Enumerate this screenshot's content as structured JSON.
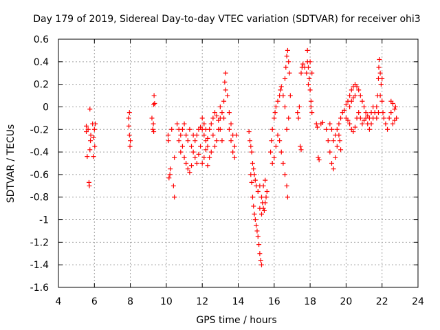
{
  "chart_data": {
    "type": "scatter",
    "title": "Day 179 of 2019, Sidereal Day-to-day VTEC variation (SDTVAR) for receiver ohi3",
    "xlabel": "GPS time / hours",
    "ylabel": "SDTVAR / TECUs",
    "xlim": [
      4,
      24
    ],
    "ylim": [
      -1.6,
      0.6
    ],
    "xticks": [
      4,
      6,
      8,
      10,
      12,
      14,
      16,
      18,
      20,
      22,
      24
    ],
    "xtick_labels": [
      "4",
      "6",
      "8",
      "10",
      "12",
      "14",
      "16",
      "18",
      "20",
      "22",
      "24"
    ],
    "yticks": [
      -1.6,
      -1.4,
      -1.2,
      -1,
      -0.8,
      -0.6,
      -0.4,
      -0.2,
      0,
      0.2,
      0.4,
      0.6
    ],
    "ytick_labels": [
      "-1.6",
      "-1.4",
      "-1.2",
      "-1",
      "-0.8",
      "-0.6",
      "-0.4",
      "-0.2",
      "0",
      "0.2",
      "0.4",
      "0.6"
    ],
    "grid": true,
    "marker": "+",
    "color": "#ff0000",
    "series": [
      {
        "name": "SDTVAR",
        "points": [
          [
            5.55,
            -0.17
          ],
          [
            5.55,
            -0.22
          ],
          [
            5.6,
            -0.44
          ],
          [
            5.65,
            -0.2
          ],
          [
            5.75,
            -0.02
          ],
          [
            5.8,
            -0.25
          ],
          [
            5.75,
            -0.38
          ],
          [
            5.7,
            -0.67
          ],
          [
            5.72,
            -0.7
          ],
          [
            5.78,
            -0.3
          ],
          [
            5.9,
            -0.15
          ],
          [
            5.95,
            -0.27
          ],
          [
            5.95,
            -0.44
          ],
          [
            6.0,
            -0.2
          ],
          [
            6.02,
            -0.35
          ],
          [
            6.05,
            -0.15
          ],
          [
            7.9,
            -0.1
          ],
          [
            7.92,
            -0.17
          ],
          [
            7.95,
            -0.25
          ],
          [
            7.98,
            -0.35
          ],
          [
            8.0,
            -0.3
          ],
          [
            7.95,
            -0.05
          ],
          [
            9.2,
            -0.1
          ],
          [
            9.25,
            -0.2
          ],
          [
            9.3,
            0.02
          ],
          [
            9.32,
            0.1
          ],
          [
            9.35,
            0.03
          ],
          [
            9.3,
            -0.22
          ],
          [
            9.28,
            -0.15
          ],
          [
            10.1,
            -0.25
          ],
          [
            10.12,
            -0.3
          ],
          [
            10.15,
            -0.63
          ],
          [
            10.2,
            -0.6
          ],
          [
            10.22,
            -0.55
          ],
          [
            10.3,
            -0.2
          ],
          [
            10.4,
            -0.7
          ],
          [
            10.45,
            -0.8
          ],
          [
            10.45,
            -0.45
          ],
          [
            10.6,
            -0.15
          ],
          [
            10.7,
            -0.2
          ],
          [
            10.8,
            -0.25
          ],
          [
            10.9,
            -0.35
          ],
          [
            11.0,
            -0.45
          ],
          [
            11.1,
            -0.5
          ],
          [
            11.2,
            -0.55
          ],
          [
            11.3,
            -0.58
          ],
          [
            11.4,
            -0.52
          ],
          [
            11.5,
            -0.4
          ],
          [
            11.6,
            -0.3
          ],
          [
            11.7,
            -0.25
          ],
          [
            11.8,
            -0.2
          ],
          [
            11.9,
            -0.18
          ],
          [
            12.0,
            -0.2
          ],
          [
            12.1,
            -0.25
          ],
          [
            12.2,
            -0.3
          ],
          [
            12.3,
            -0.35
          ],
          [
            10.7,
            -0.3
          ],
          [
            10.8,
            -0.4
          ],
          [
            10.9,
            -0.2
          ],
          [
            11.0,
            -0.15
          ],
          [
            11.1,
            -0.25
          ],
          [
            11.2,
            -0.3
          ],
          [
            11.3,
            -0.2
          ],
          [
            11.4,
            -0.35
          ],
          [
            11.5,
            -0.25
          ],
          [
            11.6,
            -0.45
          ],
          [
            11.7,
            -0.5
          ],
          [
            11.8,
            -0.42
          ],
          [
            11.9,
            -0.35
          ],
          [
            12.0,
            -0.5
          ],
          [
            12.1,
            -0.45
          ],
          [
            12.2,
            -0.38
          ],
          [
            12.3,
            -0.28
          ],
          [
            12.4,
            -0.2
          ],
          [
            12.5,
            -0.15
          ],
          [
            12.6,
            -0.25
          ],
          [
            12.7,
            -0.35
          ],
          [
            12.8,
            -0.3
          ],
          [
            12.9,
            -0.2
          ],
          [
            12.0,
            -0.1
          ],
          [
            12.1,
            -0.15
          ],
          [
            12.2,
            -0.2
          ],
          [
            12.3,
            -0.52
          ],
          [
            12.4,
            -0.45
          ],
          [
            12.5,
            -0.4
          ],
          [
            12.6,
            -0.1
          ],
          [
            12.7,
            -0.05
          ],
          [
            12.8,
            -0.08
          ],
          [
            12.9,
            -0.12
          ],
          [
            13.0,
            -0.1
          ],
          [
            13.1,
            -0.05
          ],
          [
            13.2,
            0.05
          ],
          [
            13.3,
            0.15
          ],
          [
            13.25,
            0.22
          ],
          [
            13.3,
            0.3
          ],
          [
            13.4,
            0.1
          ],
          [
            13.5,
            -0.05
          ],
          [
            13.6,
            -0.15
          ],
          [
            13.7,
            -0.25
          ],
          [
            13.8,
            -0.35
          ],
          [
            13.7,
            -0.4
          ],
          [
            13.6,
            -0.3
          ],
          [
            13.5,
            -0.2
          ],
          [
            13.8,
            -0.45
          ],
          [
            13.9,
            -0.25
          ],
          [
            13.0,
            -0.2
          ],
          [
            13.1,
            -0.3
          ],
          [
            13.0,
            0.0
          ],
          [
            13.2,
            -0.1
          ],
          [
            14.6,
            -0.22
          ],
          [
            14.65,
            -0.3
          ],
          [
            14.7,
            -0.35
          ],
          [
            14.75,
            -0.4
          ],
          [
            14.8,
            -0.5
          ],
          [
            14.85,
            -0.55
          ],
          [
            14.9,
            -0.6
          ],
          [
            14.95,
            -0.65
          ],
          [
            15.0,
            -0.7
          ],
          [
            14.7,
            -0.6
          ],
          [
            14.75,
            -0.67
          ],
          [
            14.8,
            -0.8
          ],
          [
            14.85,
            -0.88
          ],
          [
            14.9,
            -0.95
          ],
          [
            14.95,
            -1.0
          ],
          [
            15.0,
            -1.05
          ],
          [
            15.05,
            -1.1
          ],
          [
            15.1,
            -1.15
          ],
          [
            15.15,
            -1.22
          ],
          [
            15.2,
            -1.3
          ],
          [
            15.25,
            -1.36
          ],
          [
            15.3,
            -1.4
          ],
          [
            15.2,
            -0.7
          ],
          [
            15.3,
            -0.8
          ],
          [
            15.35,
            -0.85
          ],
          [
            15.4,
            -0.9
          ],
          [
            15.45,
            -0.92
          ],
          [
            15.5,
            -0.85
          ],
          [
            15.55,
            -0.8
          ],
          [
            15.6,
            -0.75
          ],
          [
            15.4,
            -0.7
          ],
          [
            15.5,
            -0.65
          ],
          [
            15.1,
            -0.75
          ],
          [
            15.2,
            -0.9
          ],
          [
            15.3,
            -0.95
          ],
          [
            15.8,
            -0.4
          ],
          [
            15.85,
            -0.3
          ],
          [
            15.9,
            -0.2
          ],
          [
            16.0,
            -0.1
          ],
          [
            16.05,
            -0.05
          ],
          [
            16.1,
            0.0
          ],
          [
            16.2,
            0.05
          ],
          [
            16.3,
            0.1
          ],
          [
            16.35,
            0.15
          ],
          [
            16.4,
            0.18
          ],
          [
            15.9,
            -0.5
          ],
          [
            16.0,
            -0.45
          ],
          [
            16.1,
            -0.35
          ],
          [
            16.2,
            -0.25
          ],
          [
            16.3,
            -0.3
          ],
          [
            16.4,
            -0.4
          ],
          [
            16.5,
            -0.5
          ],
          [
            16.6,
            -0.6
          ],
          [
            16.7,
            -0.7
          ],
          [
            16.75,
            -0.8
          ],
          [
            16.5,
            0.1
          ],
          [
            16.6,
            0.25
          ],
          [
            16.65,
            0.35
          ],
          [
            16.7,
            0.45
          ],
          [
            16.75,
            0.5
          ],
          [
            16.8,
            0.4
          ],
          [
            16.85,
            0.3
          ],
          [
            16.9,
            0.1
          ],
          [
            16.6,
            0.0
          ],
          [
            16.7,
            -0.2
          ],
          [
            16.8,
            -0.1
          ],
          [
            17.3,
            -0.05
          ],
          [
            17.35,
            -0.1
          ],
          [
            17.4,
            0.0
          ],
          [
            17.45,
            -0.35
          ],
          [
            17.5,
            -0.38
          ],
          [
            17.5,
            0.3
          ],
          [
            17.55,
            0.35
          ],
          [
            17.6,
            0.38
          ],
          [
            17.7,
            0.35
          ],
          [
            17.8,
            0.3
          ],
          [
            17.85,
            0.4
          ],
          [
            17.9,
            0.35
          ],
          [
            17.95,
            0.25
          ],
          [
            18.0,
            0.15
          ],
          [
            18.05,
            0.05
          ],
          [
            18.1,
            -0.05
          ],
          [
            17.85,
            0.5
          ],
          [
            17.9,
            0.2
          ],
          [
            18.0,
            0.4
          ],
          [
            18.1,
            0.3
          ],
          [
            18.05,
            0.0
          ],
          [
            18.35,
            -0.15
          ],
          [
            18.4,
            -0.18
          ],
          [
            18.45,
            -0.45
          ],
          [
            18.5,
            -0.47
          ],
          [
            18.6,
            -0.15
          ],
          [
            18.7,
            -0.14
          ],
          [
            18.9,
            -0.2
          ],
          [
            19.0,
            -0.3
          ],
          [
            19.1,
            -0.4
          ],
          [
            19.2,
            -0.5
          ],
          [
            19.3,
            -0.55
          ],
          [
            19.4,
            -0.45
          ],
          [
            19.5,
            -0.35
          ],
          [
            19.6,
            -0.25
          ],
          [
            19.1,
            -0.15
          ],
          [
            19.2,
            -0.2
          ],
          [
            19.3,
            -0.3
          ],
          [
            19.4,
            -0.25
          ],
          [
            19.5,
            -0.2
          ],
          [
            19.6,
            -0.15
          ],
          [
            19.7,
            -0.1
          ],
          [
            19.65,
            -0.3
          ],
          [
            19.7,
            -0.38
          ],
          [
            19.8,
            -0.05
          ],
          [
            19.9,
            -0.03
          ],
          [
            20.0,
            0.02
          ],
          [
            20.1,
            0.05
          ],
          [
            20.2,
            0.1
          ],
          [
            20.3,
            0.15
          ],
          [
            20.4,
            0.18
          ],
          [
            20.5,
            0.2
          ],
          [
            20.6,
            0.18
          ],
          [
            20.7,
            0.15
          ],
          [
            20.8,
            0.1
          ],
          [
            20.9,
            0.05
          ],
          [
            21.0,
            0.0
          ],
          [
            21.1,
            -0.05
          ],
          [
            21.2,
            -0.08
          ],
          [
            21.3,
            -0.1
          ],
          [
            21.4,
            -0.05
          ],
          [
            21.5,
            0.0
          ],
          [
            21.6,
            -0.05
          ],
          [
            20.0,
            -0.1
          ],
          [
            20.1,
            -0.12
          ],
          [
            20.2,
            -0.15
          ],
          [
            20.3,
            -0.2
          ],
          [
            20.4,
            -0.22
          ],
          [
            20.5,
            -0.18
          ],
          [
            20.6,
            -0.1
          ],
          [
            20.7,
            -0.05
          ],
          [
            20.8,
            -0.1
          ],
          [
            20.9,
            -0.15
          ],
          [
            21.0,
            -0.12
          ],
          [
            21.1,
            -0.1
          ],
          [
            21.2,
            -0.15
          ],
          [
            21.3,
            -0.2
          ],
          [
            21.4,
            -0.15
          ],
          [
            21.5,
            -0.1
          ],
          [
            20.2,
            0.0
          ],
          [
            20.3,
            0.05
          ],
          [
            20.4,
            0.08
          ],
          [
            20.5,
            0.1
          ],
          [
            21.7,
            0.0
          ],
          [
            21.75,
            0.1
          ],
          [
            21.8,
            0.25
          ],
          [
            21.82,
            0.35
          ],
          [
            21.85,
            0.42
          ],
          [
            21.9,
            0.3
          ],
          [
            21.95,
            0.2
          ],
          [
            22.0,
            0.05
          ],
          [
            22.05,
            -0.05
          ],
          [
            22.1,
            -0.1
          ],
          [
            22.0,
            0.25
          ],
          [
            21.9,
            0.1
          ],
          [
            21.8,
            -0.05
          ],
          [
            21.7,
            -0.1
          ],
          [
            22.2,
            -0.15
          ],
          [
            22.3,
            -0.2
          ],
          [
            22.4,
            -0.1
          ],
          [
            22.5,
            0.05
          ],
          [
            22.6,
            0.03
          ],
          [
            22.7,
            -0.02
          ],
          [
            22.75,
            0.0
          ],
          [
            22.8,
            -0.1
          ],
          [
            22.6,
            -0.15
          ],
          [
            22.7,
            -0.12
          ],
          [
            22.5,
            -0.05
          ]
        ]
      }
    ]
  }
}
